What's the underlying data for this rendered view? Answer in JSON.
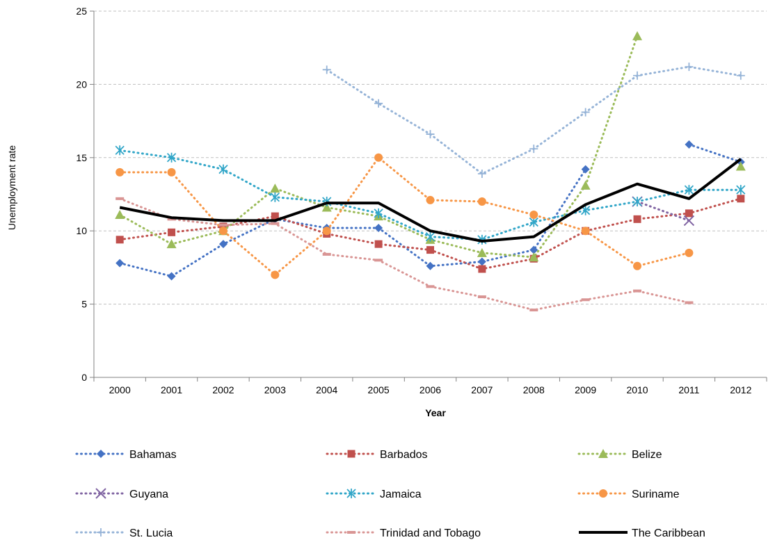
{
  "chart_data": {
    "type": "line",
    "title": "",
    "xlabel": "Year",
    "ylabel": "Unemployment rate",
    "categories": [
      "2000",
      "2001",
      "2002",
      "2003",
      "2004",
      "2005",
      "2006",
      "2007",
      "2008",
      "2009",
      "2010",
      "2011",
      "2012"
    ],
    "ylim": [
      0,
      25
    ],
    "yticks": [
      0,
      5,
      10,
      15,
      20,
      25
    ],
    "grid": "horizontal-dashed",
    "legend_position": "bottom",
    "series": [
      {
        "name": "Bahamas",
        "color": "#4472C4",
        "marker": "diamond",
        "line": "dotted",
        "values": [
          7.8,
          6.9,
          9.1,
          10.8,
          10.2,
          10.2,
          7.6,
          7.9,
          8.7,
          14.2,
          null,
          15.9,
          14.7
        ]
      },
      {
        "name": "Barbados",
        "color": "#C0504D",
        "marker": "square",
        "line": "dotted",
        "values": [
          9.4,
          9.9,
          10.3,
          11.0,
          9.8,
          9.1,
          8.7,
          7.4,
          8.1,
          10.0,
          10.8,
          11.2,
          12.2
        ]
      },
      {
        "name": "Belize",
        "color": "#9BBB59",
        "marker": "triangle",
        "line": "dotted",
        "values": [
          11.1,
          9.1,
          10.0,
          12.9,
          11.6,
          11.0,
          9.4,
          8.5,
          8.2,
          13.1,
          23.3,
          null,
          14.4
        ]
      },
      {
        "name": "Guyana",
        "color": "#8064A2",
        "marker": "x",
        "line": "dotted",
        "values": [
          null,
          null,
          null,
          null,
          null,
          null,
          null,
          null,
          null,
          null,
          12.0,
          10.7,
          null
        ]
      },
      {
        "name": "Jamaica",
        "color": "#31A6C8",
        "marker": "asterisk",
        "line": "dotted",
        "values": [
          15.5,
          15.0,
          14.2,
          12.3,
          12.0,
          11.2,
          9.6,
          9.4,
          10.6,
          11.4,
          12.0,
          12.8,
          12.8
        ]
      },
      {
        "name": "Suriname",
        "color": "#F79646",
        "marker": "circle",
        "line": "dotted",
        "values": [
          14.0,
          14.0,
          10.0,
          7.0,
          10.0,
          15.0,
          12.1,
          12.0,
          11.1,
          10.0,
          7.6,
          8.5,
          null
        ]
      },
      {
        "name": "St. Lucia",
        "color": "#95B3D7",
        "marker": "plus",
        "line": "dotted",
        "values": [
          null,
          null,
          null,
          null,
          21.0,
          18.7,
          16.6,
          13.9,
          15.6,
          18.1,
          20.6,
          21.2,
          20.6
        ]
      },
      {
        "name": "Trinidad and Tobago",
        "color": "#D99594",
        "marker": "dash",
        "line": "dotted",
        "values": [
          12.2,
          10.8,
          10.4,
          10.5,
          8.4,
          8.0,
          6.2,
          5.5,
          4.6,
          5.3,
          5.9,
          5.1,
          null
        ]
      },
      {
        "name": "The Caribbean",
        "color": "#000000",
        "marker": "none",
        "line": "solid",
        "values": [
          11.6,
          10.9,
          10.7,
          10.7,
          11.9,
          11.9,
          10.0,
          9.3,
          9.6,
          11.8,
          13.2,
          12.2,
          14.9
        ]
      }
    ]
  }
}
